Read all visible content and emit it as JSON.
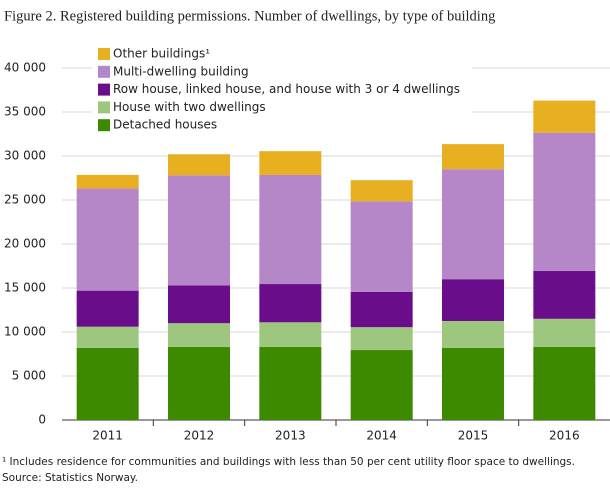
{
  "chart_data": {
    "type": "stacked-bar",
    "title": "Figure 2. Registered building permissions. Number of dwellings, by type of building",
    "categories": [
      "2011",
      "2012",
      "2013",
      "2014",
      "2015",
      "2016"
    ],
    "series": [
      {
        "name": "Detached houses",
        "color": "#3d8a00",
        "values": [
          8200,
          8300,
          8300,
          7950,
          8200,
          8300
        ]
      },
      {
        "name": "House with two dwellings",
        "color": "#9dc77e",
        "values": [
          2400,
          2700,
          2800,
          2600,
          3050,
          3200
        ]
      },
      {
        "name": "Row house, linked house, and house with 3 or 4 dwellings",
        "color": "#6a0d8a",
        "values": [
          4100,
          4300,
          4350,
          4000,
          4750,
          5450
        ]
      },
      {
        "name": "Multi-dwelling building",
        "color": "#b586c8",
        "values": [
          11600,
          12500,
          12400,
          10300,
          12500,
          15700
        ]
      },
      {
        "name": "Other buildings¹",
        "color": "#e8b020",
        "values": [
          1550,
          2400,
          2700,
          2400,
          2850,
          3650
        ]
      }
    ],
    "ylim": [
      0,
      40000
    ],
    "yticks": [
      0,
      {
        "value": 5000,
        "label": "5 000"
      },
      {
        "value": 10000,
        "label": "10 000"
      },
      {
        "value": 15000,
        "label": "15 000"
      },
      {
        "value": 20000,
        "label": "20 000"
      },
      {
        "value": 25000,
        "label": "25 000"
      },
      {
        "value": 30000,
        "label": "30 000"
      },
      {
        "value": 35000,
        "label": "35 000"
      },
      {
        "value": 40000,
        "label": "40 000"
      }
    ],
    "grid": true,
    "legend": "top-left",
    "footnote": "¹ Includes residence for communities and buildings with less than 50 per cent utility floor space to dwellings.",
    "source": "Source: Statistics Norway."
  }
}
